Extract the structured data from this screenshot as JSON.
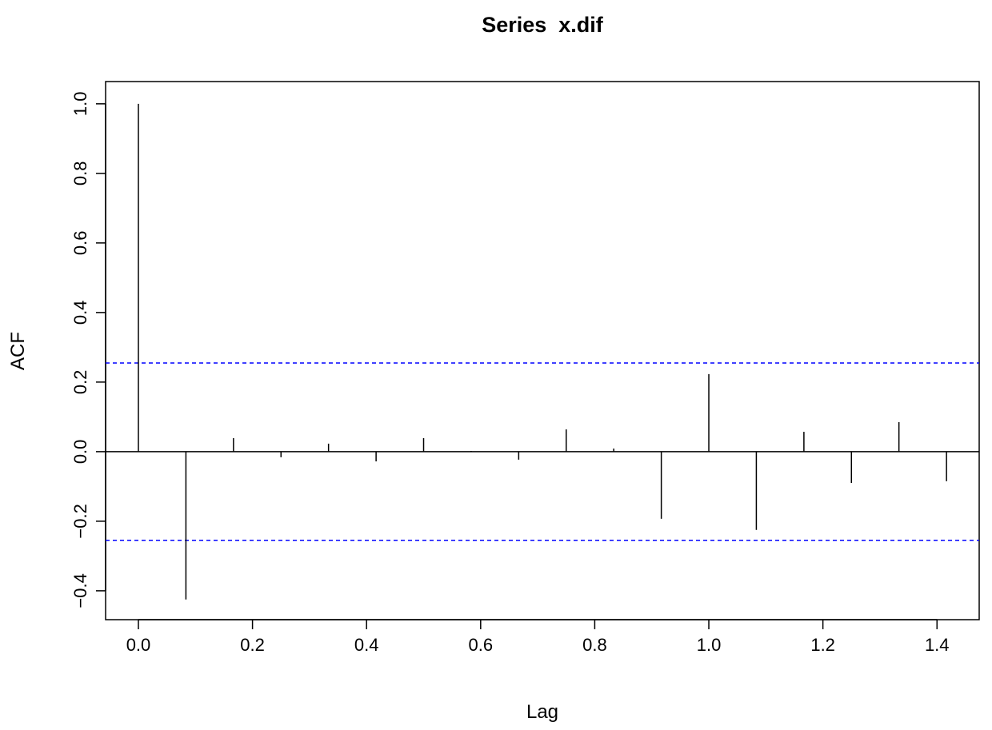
{
  "chart_data": {
    "type": "bar",
    "subtype": "acf-spike",
    "title": "Series  x.dif",
    "xlabel": "Lag",
    "ylabel": "ACF",
    "xlim": [
      -0.0575,
      1.474
    ],
    "ylim": [
      -0.483,
      1.064
    ],
    "xticks": [
      0.0,
      0.2,
      0.4,
      0.6,
      0.8,
      1.0,
      1.2,
      1.4
    ],
    "xtick_labels": [
      "0.0",
      "0.2",
      "0.4",
      "0.6",
      "0.8",
      "1.0",
      "1.2",
      "1.4"
    ],
    "yticks": [
      -0.4,
      -0.2,
      0.0,
      0.2,
      0.4,
      0.6,
      0.8,
      1.0
    ],
    "ytick_labels": [
      "−0.4",
      "−0.2",
      "0.0",
      "0.2",
      "0.4",
      "0.6",
      "0.8",
      "1.0"
    ],
    "x": [
      0,
      0.0833,
      0.1667,
      0.25,
      0.3333,
      0.4167,
      0.5,
      0.5833,
      0.6667,
      0.75,
      0.8333,
      0.9167,
      1.0,
      1.0833,
      1.1667,
      1.25,
      1.3333,
      1.4167
    ],
    "values": [
      1.0,
      -0.425,
      0.039,
      -0.016,
      0.023,
      -0.028,
      0.039,
      0.002,
      -0.023,
      0.064,
      0.009,
      -0.193,
      0.223,
      -0.225,
      0.057,
      -0.09,
      0.085,
      -0.085
    ],
    "confidence_bound": 0.255,
    "grid": false,
    "colors": {
      "spikes": "#000000",
      "confidence": "#0000ff",
      "zero_line": "#000000"
    }
  }
}
